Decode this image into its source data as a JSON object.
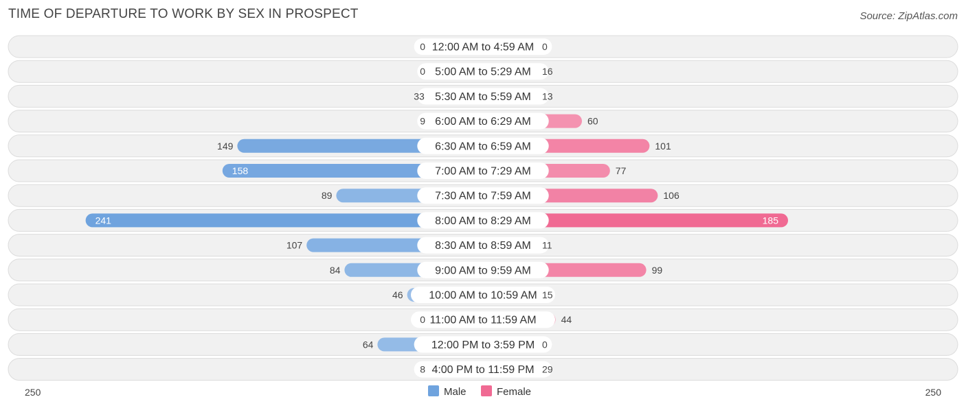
{
  "title": "TIME OF DEPARTURE TO WORK BY SEX IN PROSPECT",
  "source": "Source: ZipAtlas.com",
  "colors": {
    "male": "#6fa3de",
    "male_light": "#a9c8ec",
    "female": "#f06a93",
    "female_light": "#f6a6bf",
    "row_bg": "#f1f1f1",
    "row_border": "#dcdcdc"
  },
  "chart_data": {
    "type": "bar",
    "orientation": "horizontal-diverging",
    "categories": [
      "12:00 AM to 4:59 AM",
      "5:00 AM to 5:29 AM",
      "5:30 AM to 5:59 AM",
      "6:00 AM to 6:29 AM",
      "6:30 AM to 6:59 AM",
      "7:00 AM to 7:29 AM",
      "7:30 AM to 7:59 AM",
      "8:00 AM to 8:29 AM",
      "8:30 AM to 8:59 AM",
      "9:00 AM to 9:59 AM",
      "10:00 AM to 10:59 AM",
      "11:00 AM to 11:59 AM",
      "12:00 PM to 3:59 PM",
      "4:00 PM to 11:59 PM"
    ],
    "series": [
      {
        "name": "Male",
        "values": [
          0,
          0,
          33,
          9,
          149,
          158,
          89,
          241,
          107,
          84,
          46,
          0,
          64,
          8
        ]
      },
      {
        "name": "Female",
        "values": [
          0,
          16,
          13,
          60,
          101,
          77,
          106,
          185,
          11,
          99,
          15,
          44,
          0,
          29
        ]
      }
    ],
    "axis_max": 250,
    "axis_labels": {
      "left": "250",
      "right": "250"
    },
    "legend": {
      "position": "bottom-center",
      "items": [
        "Male",
        "Female"
      ]
    }
  }
}
